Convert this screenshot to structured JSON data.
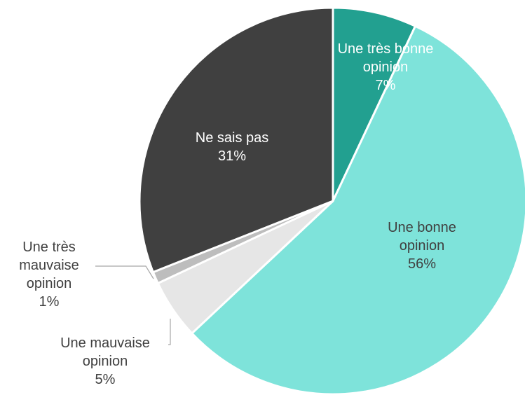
{
  "chart_data": {
    "type": "pie",
    "categories": [
      "Une très bonne opinion",
      "Une bonne opinion",
      "Une mauvaise opinion",
      "Une très mauvaise opinion",
      "Ne sais pas"
    ],
    "values": [
      7,
      56,
      5,
      1,
      31
    ],
    "value_labels": [
      "7%",
      "56%",
      "5%",
      "1%",
      "31%"
    ],
    "colors": [
      "#22a090",
      "#7ee3da",
      "#e6e6e6",
      "#bdbdbd",
      "#404040"
    ]
  }
}
